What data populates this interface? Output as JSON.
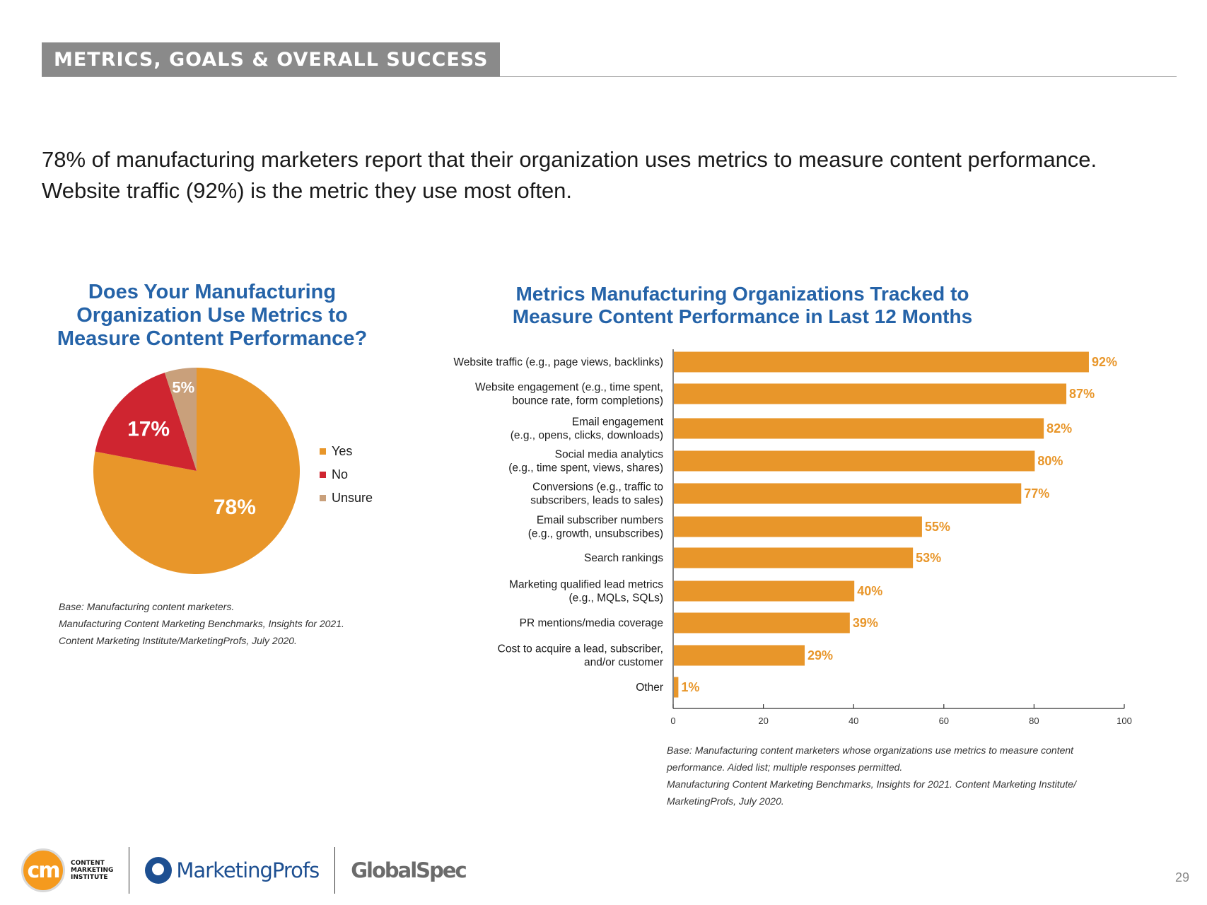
{
  "section_title": "METRICS, GOALS & OVERALL SUCCESS",
  "headline": {
    "line1": "78% of manufacturing marketers report that their organization uses metrics to measure content performance.",
    "line2": "Website traffic (92%) is the metric they use most often."
  },
  "chart_data": [
    {
      "type": "pie",
      "title_lines": [
        "Does Your Manufacturing",
        "Organization Use Metrics to",
        "Measure Content Performance?"
      ],
      "slices": [
        {
          "label": "Yes",
          "value": 78,
          "display": "78%",
          "color": "#e8962a"
        },
        {
          "label": "No",
          "value": 17,
          "display": "17%",
          "color": "#cf2530"
        },
        {
          "label": "Unsure",
          "value": 5,
          "display": "5%",
          "color": "#c9a07b"
        }
      ],
      "legend_position": "right",
      "notes": [
        "Base: Manufacturing content marketers.",
        "Manufacturing Content Marketing Benchmarks, Insights for 2021.",
        "Content Marketing Institute/MarketingProfs, July 2020."
      ]
    },
    {
      "type": "bar",
      "orientation": "horizontal",
      "title_lines": [
        "Metrics Manufacturing Organizations Tracked to",
        "Measure Content Performance in Last 12 Months"
      ],
      "categories": [
        [
          "Website traffic (e.g., page views, backlinks)"
        ],
        [
          "Website engagement (e.g., time spent,",
          "bounce rate, form completions)"
        ],
        [
          "Email engagement",
          "(e.g., opens, clicks, downloads)"
        ],
        [
          "Social media analytics",
          "(e.g., time spent, views, shares)"
        ],
        [
          "Conversions (e.g., traffic to",
          "subscribers, leads to sales)"
        ],
        [
          "Email subscriber numbers",
          "(e.g., growth, unsubscribes)"
        ],
        [
          "Search rankings"
        ],
        [
          "Marketing qualified lead metrics",
          "(e.g., MQLs, SQLs)"
        ],
        [
          "PR mentions/media coverage"
        ],
        [
          "Cost to acquire a lead, subscriber,",
          "and/or customer"
        ],
        [
          "Other"
        ]
      ],
      "values": [
        92,
        87,
        82,
        80,
        77,
        55,
        53,
        40,
        39,
        29,
        1
      ],
      "value_labels": [
        "92%",
        "87%",
        "82%",
        "80%",
        "77%",
        "55%",
        "53%",
        "40%",
        "39%",
        "29%",
        "1%"
      ],
      "xlim": [
        0,
        100
      ],
      "xticks": [
        0,
        20,
        40,
        60,
        80,
        100
      ],
      "bar_color": "#e8962a",
      "label_color": "#e8962a",
      "notes": [
        "Base: Manufacturing content marketers whose organizations use metrics to measure content",
        "performance. Aided list; multiple responses permitted.",
        "Manufacturing Content Marketing Benchmarks, Insights for 2021. Content Marketing Institute/",
        "MarketingProfs, July 2020."
      ]
    }
  ],
  "footer": {
    "cmi_mark": "cm",
    "cmi_text": "CONTENT\nMARKETING\nINSTITUTE",
    "marketingprofs": "MarketingProfs",
    "globalspec": "GlobalSpec"
  },
  "page_number": "29"
}
